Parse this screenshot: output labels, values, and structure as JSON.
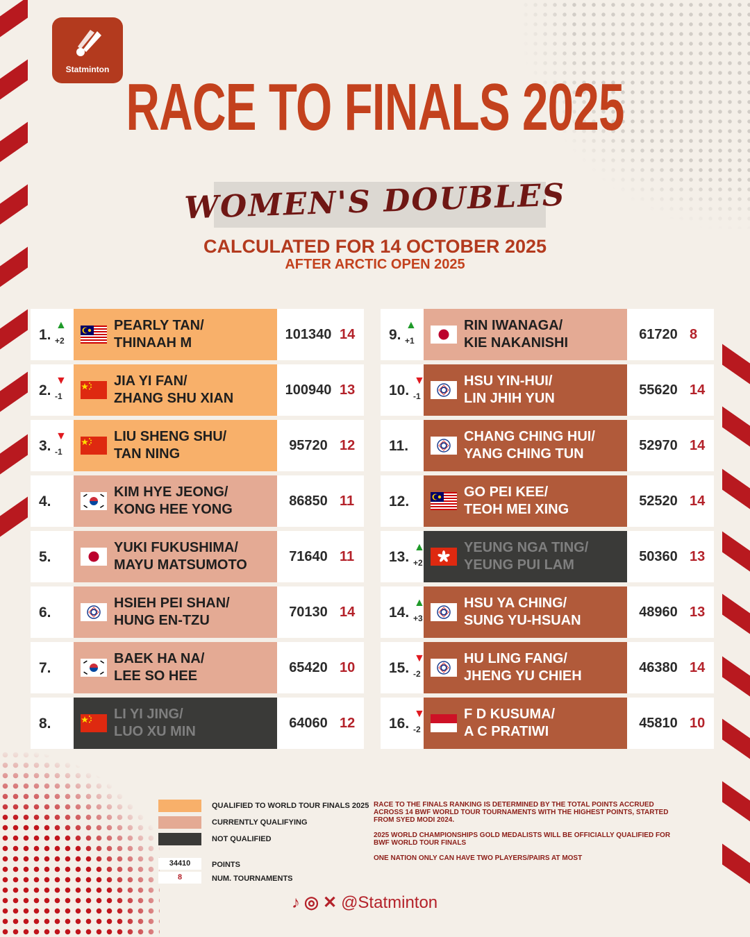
{
  "brand": "Statminton",
  "title": "RACE TO FINALS 2025",
  "subtitle": "WOMEN'S DOUBLES",
  "calculated": "CALCULATED FOR 14 OCTOBER 2025",
  "after": "AFTER ARCTIC OPEN 2025",
  "colors": {
    "qualified": "#f8b06a",
    "currently_qualifying": "#e4aa94",
    "currently_qualifying_dark": "#b15a3a",
    "not_qualified": "#3a3a38",
    "accent": "#c3411d"
  },
  "left_rows": [
    {
      "rank": "1.",
      "change": "+2",
      "direction": "up",
      "name1": "PEARLY TAN/",
      "name2": "THINAAH M",
      "flag": "malaysia",
      "points": "101340",
      "tournaments": "14",
      "status": "qualified"
    },
    {
      "rank": "2.",
      "change": "-1",
      "direction": "down",
      "name1": "JIA YI FAN/",
      "name2": "ZHANG SHU XIAN",
      "flag": "china",
      "points": "100940",
      "tournaments": "13",
      "status": "qualified"
    },
    {
      "rank": "3.",
      "change": "-1",
      "direction": "down",
      "name1": "LIU SHENG SHU/",
      "name2": "TAN NING",
      "flag": "china",
      "points": "95720",
      "tournaments": "12",
      "status": "qualified"
    },
    {
      "rank": "4.",
      "change": "",
      "direction": "",
      "name1": "KIM HYE JEONG/",
      "name2": "KONG HEE YONG",
      "flag": "korea",
      "points": "86850",
      "tournaments": "11",
      "status": "qualifying"
    },
    {
      "rank": "5.",
      "change": "",
      "direction": "",
      "name1": "YUKI FUKUSHIMA/",
      "name2": "MAYU MATSUMOTO",
      "flag": "japan",
      "points": "71640",
      "tournaments": "11",
      "status": "qualifying"
    },
    {
      "rank": "6.",
      "change": "",
      "direction": "",
      "name1": "HSIEH PEI SHAN/",
      "name2": "HUNG EN-TZU",
      "flag": "chinese-taipei",
      "points": "70130",
      "tournaments": "14",
      "status": "qualifying"
    },
    {
      "rank": "7.",
      "change": "",
      "direction": "",
      "name1": "BAEK HA NA/",
      "name2": "LEE SO HEE",
      "flag": "korea",
      "points": "65420",
      "tournaments": "10",
      "status": "qualifying"
    },
    {
      "rank": "8.",
      "change": "",
      "direction": "",
      "name1": "LI YI JING/",
      "name2": "LUO XU MIN",
      "flag": "china",
      "points": "64060",
      "tournaments": "12",
      "status": "not"
    }
  ],
  "right_rows": [
    {
      "rank": "9.",
      "change": "+1",
      "direction": "up",
      "name1": "RIN IWANAGA/",
      "name2": "KIE NAKANISHI",
      "flag": "japan",
      "points": "61720",
      "tournaments": "8",
      "status": "qualifying"
    },
    {
      "rank": "10.",
      "change": "-1",
      "direction": "down",
      "name1": "HSU YIN-HUI/",
      "name2": "LIN JHIH YUN",
      "flag": "chinese-taipei",
      "points": "55620",
      "tournaments": "14",
      "status": "dark-qual"
    },
    {
      "rank": "11.",
      "change": "",
      "direction": "",
      "name1": "CHANG CHING HUI/",
      "name2": "YANG CHING TUN",
      "flag": "chinese-taipei",
      "points": "52970",
      "tournaments": "14",
      "status": "dark-qual"
    },
    {
      "rank": "12.",
      "change": "",
      "direction": "",
      "name1": "GO PEI KEE/",
      "name2": "TEOH MEI XING",
      "flag": "malaysia",
      "points": "52520",
      "tournaments": "14",
      "status": "dark-qual"
    },
    {
      "rank": "13.",
      "change": "+2",
      "direction": "up",
      "name1": "YEUNG NGA TING/",
      "name2": "YEUNG PUI LAM",
      "flag": "hong-kong",
      "points": "50360",
      "tournaments": "13",
      "status": "not"
    },
    {
      "rank": "14.",
      "change": "+3",
      "direction": "up",
      "name1": "HSU YA CHING/",
      "name2": "SUNG YU-HSUAN",
      "flag": "chinese-taipei",
      "points": "48960",
      "tournaments": "13",
      "status": "dark-qual"
    },
    {
      "rank": "15.",
      "change": "-2",
      "direction": "down",
      "name1": "HU LING FANG/",
      "name2": "JHENG YU CHIEH",
      "flag": "chinese-taipei",
      "points": "46380",
      "tournaments": "14",
      "status": "dark-qual"
    },
    {
      "rank": "16.",
      "change": "-2",
      "direction": "down",
      "name1": "F D KUSUMA/",
      "name2": "A C PRATIWI",
      "flag": "indonesia",
      "points": "45810",
      "tournaments": "10",
      "status": "dark-qual"
    }
  ],
  "legend": {
    "qualified": "QUALIFIED TO WORLD TOUR FINALS 2025",
    "qualifying": "CURRENTLY QUALIFYING",
    "not_qualified": "NOT QUALIFIED",
    "points_sample": "34410",
    "points_label": "POINTS",
    "tournaments_sample": "8",
    "tournaments_label": "NUM. TOURNAMENTS"
  },
  "notes": [
    "RACE TO THE FINALS RANKING IS DETERMINED BY THE TOTAL POINTS ACCRUED ACROSS 14 BWF WORLD TOUR TOURNAMENTS WITH THE HIGHEST POINTS, STARTED FROM SYED MODI 2024.",
    "2025 WORLD CHAMPIONSHIPS GOLD MEDALISTS WILL BE OFFICIALLY QUALIFIED FOR BWF WORLD TOUR FINALS",
    "ONE NATION ONLY CAN HAVE TWO PLAYERS/PAIRS AT MOST"
  ],
  "social": {
    "handle": "@Statminton",
    "icons": [
      "tiktok-icon",
      "instagram-icon",
      "x-icon"
    ]
  }
}
